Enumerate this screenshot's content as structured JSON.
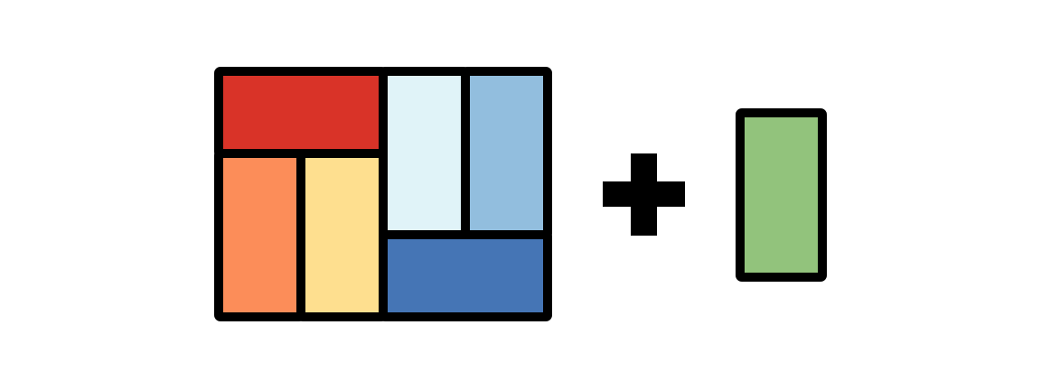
{
  "diagram": {
    "grid_tiles": [
      {
        "id": "tile-red",
        "color": "#D93328"
      },
      {
        "id": "tile-orange",
        "color": "#FC8D59"
      },
      {
        "id": "tile-yellow",
        "color": "#FEDF8F"
      },
      {
        "id": "tile-pale-blue",
        "color": "#E0F3F8"
      },
      {
        "id": "tile-light-blue",
        "color": "#92BEDE"
      },
      {
        "id": "tile-blue",
        "color": "#4575B5"
      }
    ],
    "operator": {
      "symbol": "plus",
      "color": "#000000"
    },
    "extra_tile": {
      "id": "tile-green",
      "color": "#92C37C"
    },
    "outline_color": "#000000",
    "background_color": "#FFFFFF"
  }
}
